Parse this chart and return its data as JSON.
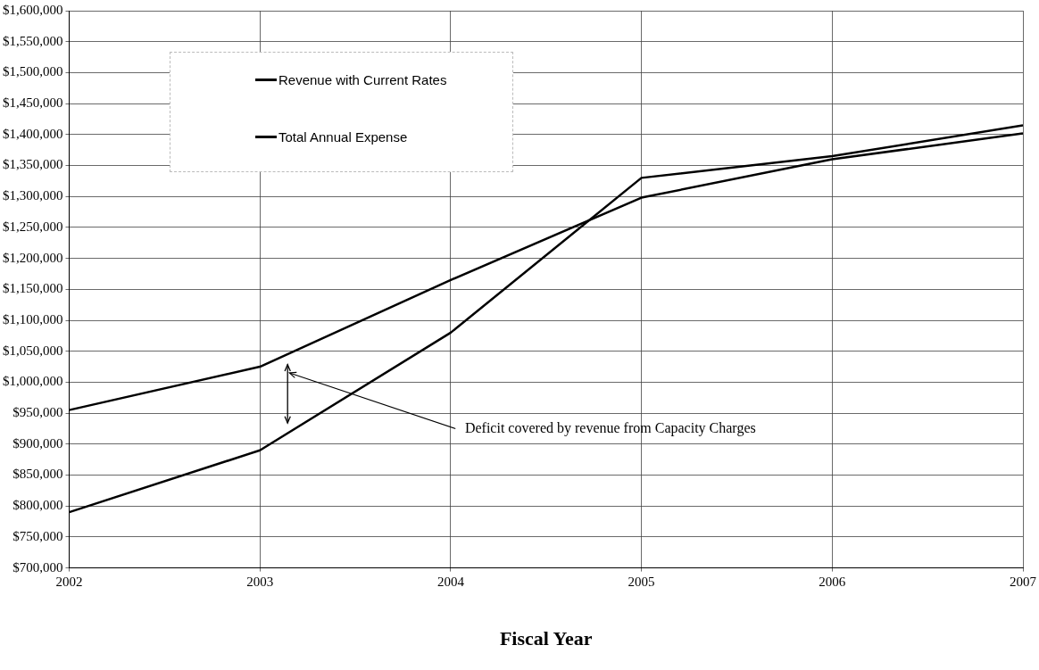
{
  "chart_data": {
    "type": "line",
    "xlabel": "Fiscal Year",
    "x": [
      2002,
      2003,
      2004,
      2005,
      2006,
      2007
    ],
    "series": [
      {
        "name": "Revenue with Current Rates",
        "color": "#000000",
        "values": [
          790000,
          890000,
          1080000,
          1330000,
          1365000,
          1415000
        ]
      },
      {
        "name": "Total Annual Expense",
        "color": "#000000",
        "values": [
          955000,
          1025000,
          1165000,
          1298000,
          1360000,
          1402000
        ]
      }
    ],
    "xlim": [
      2002,
      2007
    ],
    "xticks": [
      2002,
      2003,
      2004,
      2005,
      2006,
      2007
    ],
    "ylim": [
      700000,
      1600000
    ],
    "yticks": [
      {
        "value": 700000,
        "label": "$700,000"
      },
      {
        "value": 750000,
        "label": "$750,000"
      },
      {
        "value": 800000,
        "label": "$800,000"
      },
      {
        "value": 850000,
        "label": "$850,000"
      },
      {
        "value": 900000,
        "label": "$900,000"
      },
      {
        "value": 950000,
        "label": "$950,000"
      },
      {
        "value": 1000000,
        "label": "$1,000,000"
      },
      {
        "value": 1050000,
        "label": "$1,050,000"
      },
      {
        "value": 1100000,
        "label": "$1,100,000"
      },
      {
        "value": 1150000,
        "label": "$1,150,000"
      },
      {
        "value": 1200000,
        "label": "$1,200,000"
      },
      {
        "value": 1250000,
        "label": "$1,250,000"
      },
      {
        "value": 1300000,
        "label": "$1,300,000"
      },
      {
        "value": 1350000,
        "label": "$1,350,000"
      },
      {
        "value": 1400000,
        "label": "$1,400,000"
      },
      {
        "value": 1450000,
        "label": "$1,450,000"
      },
      {
        "value": 1500000,
        "label": "$1,500,000"
      },
      {
        "value": 1550000,
        "label": "$1,550,000"
      },
      {
        "value": 1600000,
        "label": "$1,600,000"
      }
    ],
    "grid": true,
    "legend": "top left",
    "marker": "none",
    "line_style": "solid",
    "annotations": [
      "Deficit covered by revenue from Capacity Charges"
    ]
  }
}
